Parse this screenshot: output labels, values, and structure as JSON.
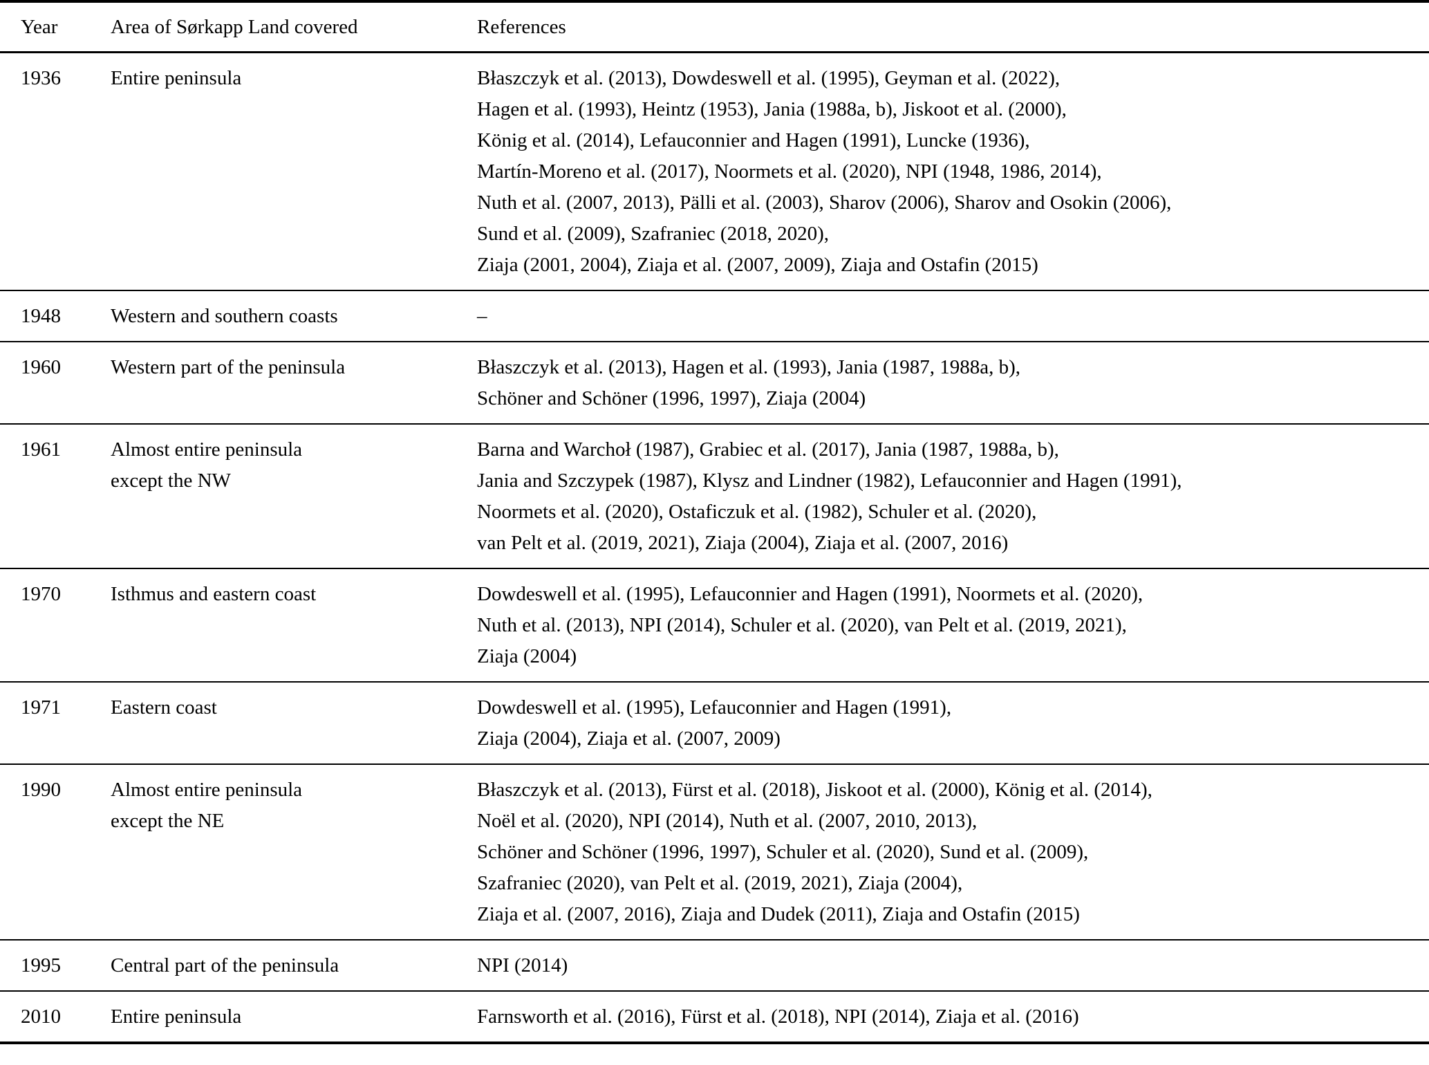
{
  "table": {
    "columns": [
      "Year",
      "Area of Sørkapp Land covered",
      "References"
    ],
    "rows": [
      {
        "year": "1936",
        "area_lines": [
          "Entire peninsula"
        ],
        "reference_lines": [
          "Błaszczyk et al. (2013), Dowdeswell et al. (1995), Geyman et al. (2022),",
          "Hagen et al. (1993), Heintz (1953), Jania (1988a, b), Jiskoot et al. (2000),",
          "König et al. (2014), Lefauconnier and Hagen (1991), Luncke (1936),",
          "Martín-Moreno et al. (2017), Noormets et al. (2020), NPI (1948, 1986, 2014),",
          "Nuth et al. (2007, 2013), Pälli et al. (2003), Sharov (2006), Sharov and Osokin (2006),",
          "Sund et al. (2009), Szafraniec (2018, 2020),",
          "Ziaja (2001, 2004), Ziaja et al. (2007, 2009), Ziaja and Ostafin (2015)"
        ]
      },
      {
        "year": "1948",
        "area_lines": [
          "Western and southern coasts"
        ],
        "reference_lines": [
          "–"
        ]
      },
      {
        "year": "1960",
        "area_lines": [
          "Western part of the peninsula"
        ],
        "reference_lines": [
          "Błaszczyk et al. (2013), Hagen et al. (1993), Jania (1987, 1988a, b),",
          "Schöner and Schöner (1996, 1997), Ziaja (2004)"
        ]
      },
      {
        "year": "1961",
        "area_lines": [
          "Almost entire peninsula",
          "except the NW"
        ],
        "reference_lines": [
          "Barna and Warchoł (1987), Grabiec et al. (2017), Jania (1987, 1988a, b),",
          "Jania and Szczypek (1987), Klysz and Lindner (1982), Lefauconnier and Hagen (1991),",
          "Noormets et al. (2020), Ostaficzuk et al. (1982), Schuler et al. (2020),",
          "van Pelt et al. (2019, 2021), Ziaja (2004), Ziaja et al. (2007, 2016)"
        ]
      },
      {
        "year": "1970",
        "area_lines": [
          "Isthmus and eastern coast"
        ],
        "reference_lines": [
          "Dowdeswell et al. (1995), Lefauconnier and Hagen (1991), Noormets et al. (2020),",
          "Nuth et al. (2013), NPI (2014), Schuler et al. (2020), van Pelt et al. (2019, 2021),",
          "Ziaja (2004)"
        ]
      },
      {
        "year": "1971",
        "area_lines": [
          "Eastern coast"
        ],
        "reference_lines": [
          "Dowdeswell et al. (1995), Lefauconnier and Hagen (1991),",
          "Ziaja (2004), Ziaja et al. (2007, 2009)"
        ]
      },
      {
        "year": "1990",
        "area_lines": [
          "Almost entire peninsula",
          "except the NE"
        ],
        "reference_lines": [
          "Błaszczyk et al. (2013), Fürst et al. (2018), Jiskoot et al. (2000), König et al. (2014),",
          "Noël et al. (2020), NPI (2014), Nuth et al. (2007, 2010, 2013),",
          "Schöner and Schöner (1996, 1997), Schuler et al. (2020), Sund et al. (2009),",
          "Szafraniec (2020), van Pelt et al. (2019, 2021), Ziaja (2004),",
          "Ziaja et al. (2007, 2016), Ziaja and Dudek (2011), Ziaja and Ostafin (2015)"
        ]
      },
      {
        "year": "1995",
        "area_lines": [
          "Central part of the peninsula"
        ],
        "reference_lines": [
          "NPI (2014)"
        ]
      },
      {
        "year": "2010",
        "area_lines": [
          "Entire peninsula"
        ],
        "reference_lines": [
          "Farnsworth et al. (2016), Fürst et al. (2018), NPI (2014), Ziaja et al. (2016)"
        ]
      }
    ]
  }
}
